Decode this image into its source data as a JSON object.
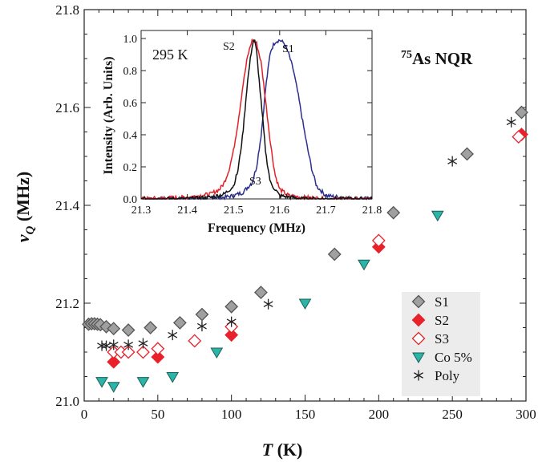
{
  "chart_data": [
    {
      "type": "scatter",
      "title": "",
      "annotation": {
        "mass": "75",
        "text": "As NQR"
      },
      "xlabel": {
        "italic": "T",
        "unit": " (K)"
      },
      "ylabel": {
        "symbol": "ν",
        "sub": "Q",
        "unit": " (MHz)"
      },
      "xlim": [
        0,
        300
      ],
      "ylim": [
        21.0,
        21.8
      ],
      "xticks": [
        "0",
        "50",
        "100",
        "150",
        "200",
        "250",
        "300"
      ],
      "yticks": [
        "21.0",
        "21.2",
        "21.4",
        "21.6",
        "21.8"
      ],
      "legend_position": "bottom-right",
      "series": [
        {
          "name": "S1",
          "marker": "diamond",
          "color": "#a0a0a0",
          "points": [
            [
              3,
              21.157
            ],
            [
              5,
              21.158
            ],
            [
              7,
              21.158
            ],
            [
              9,
              21.157
            ],
            [
              11,
              21.156
            ],
            [
              15,
              21.152
            ],
            [
              20,
              21.148
            ],
            [
              30,
              21.145
            ],
            [
              45,
              21.15
            ],
            [
              65,
              21.16
            ],
            [
              80,
              21.177
            ],
            [
              100,
              21.193
            ],
            [
              120,
              21.222
            ],
            [
              170,
              21.3
            ],
            [
              210,
              21.385
            ],
            [
              260,
              21.505
            ],
            [
              297,
              21.59
            ]
          ]
        },
        {
          "name": "S2",
          "marker": "diamond-filled",
          "color": "#e8212a",
          "points": [
            [
              20,
              21.08
            ],
            [
              50,
              21.09
            ],
            [
              100,
              21.135
            ],
            [
              200,
              21.315
            ],
            [
              297,
              21.545
            ]
          ]
        },
        {
          "name": "S3",
          "marker": "diamond-open",
          "color": "#e8212a",
          "points": [
            [
              20,
              21.1
            ],
            [
              25,
              21.1
            ],
            [
              30,
              21.1
            ],
            [
              40,
              21.1
            ],
            [
              50,
              21.107
            ],
            [
              75,
              21.123
            ],
            [
              100,
              21.152
            ],
            [
              200,
              21.328
            ],
            [
              295,
              21.54
            ]
          ]
        },
        {
          "name": "Co 5%",
          "marker": "triangle-down",
          "color": "#2bb5a8",
          "points": [
            [
              12,
              21.04
            ],
            [
              20,
              21.03
            ],
            [
              40,
              21.04
            ],
            [
              60,
              21.05
            ],
            [
              90,
              21.1
            ],
            [
              150,
              21.2
            ],
            [
              190,
              21.28
            ],
            [
              240,
              21.38
            ]
          ]
        },
        {
          "name": "Poly",
          "marker": "asterisk",
          "color": "#222222",
          "points": [
            [
              12,
              21.113
            ],
            [
              15,
              21.113
            ],
            [
              20,
              21.115
            ],
            [
              30,
              21.115
            ],
            [
              40,
              21.118
            ],
            [
              60,
              21.135
            ],
            [
              80,
              21.153
            ],
            [
              100,
              21.162
            ],
            [
              125,
              21.198
            ],
            [
              250,
              21.49
            ],
            [
              290,
              21.57
            ]
          ]
        }
      ]
    },
    {
      "type": "line",
      "annotation": "295 K",
      "xlabel": "Frequency (MHz)",
      "ylabel": "Intensity (Arb. Units)",
      "xlim": [
        21.3,
        21.8
      ],
      "ylim": [
        0,
        1.05
      ],
      "xticks": [
        "21.3",
        "21.4",
        "21.5",
        "21.6",
        "21.7",
        "21.8"
      ],
      "yticks": [
        "0.0",
        "0.2",
        "0.4",
        "0.6",
        "0.8",
        "1.0"
      ],
      "series": [
        {
          "name": "S1",
          "color": "#2b2f8e",
          "x": [
            21.3,
            21.4,
            21.45,
            21.48,
            21.5,
            21.52,
            21.54,
            21.55,
            21.56,
            21.57,
            21.58,
            21.59,
            21.6,
            21.61,
            21.62,
            21.63,
            21.64,
            21.65,
            21.66,
            21.67,
            21.68,
            21.7,
            21.75,
            21.8
          ],
          "y": [
            0.0,
            0.0,
            0.005,
            0.01,
            0.02,
            0.04,
            0.1,
            0.2,
            0.4,
            0.7,
            0.92,
            0.98,
            0.99,
            0.97,
            0.9,
            0.8,
            0.65,
            0.48,
            0.32,
            0.18,
            0.08,
            0.02,
            0.005,
            0.0
          ]
        },
        {
          "name": "S2",
          "color": "#e3202a",
          "x": [
            21.3,
            21.4,
            21.45,
            21.47,
            21.48,
            21.49,
            21.5,
            21.51,
            21.52,
            21.53,
            21.54,
            21.55,
            21.56,
            21.57,
            21.58,
            21.59,
            21.6,
            21.62,
            21.65,
            21.7,
            21.8
          ],
          "y": [
            0.0,
            0.01,
            0.03,
            0.06,
            0.1,
            0.18,
            0.3,
            0.48,
            0.7,
            0.88,
            0.99,
            0.97,
            0.85,
            0.6,
            0.35,
            0.15,
            0.06,
            0.02,
            0.01,
            0.0,
            0.0
          ]
        },
        {
          "name": "S3",
          "color": "#111111",
          "x": [
            21.3,
            21.4,
            21.45,
            21.48,
            21.5,
            21.51,
            21.52,
            21.53,
            21.54,
            21.545,
            21.55,
            21.56,
            21.57,
            21.58,
            21.6,
            21.65,
            21.8
          ],
          "y": [
            0.0,
            0.0,
            0.01,
            0.03,
            0.08,
            0.18,
            0.4,
            0.72,
            0.95,
            1.0,
            0.92,
            0.6,
            0.28,
            0.1,
            0.02,
            0.0,
            0.0
          ]
        }
      ],
      "labels": [
        "S2",
        "S1",
        "S3"
      ]
    }
  ]
}
